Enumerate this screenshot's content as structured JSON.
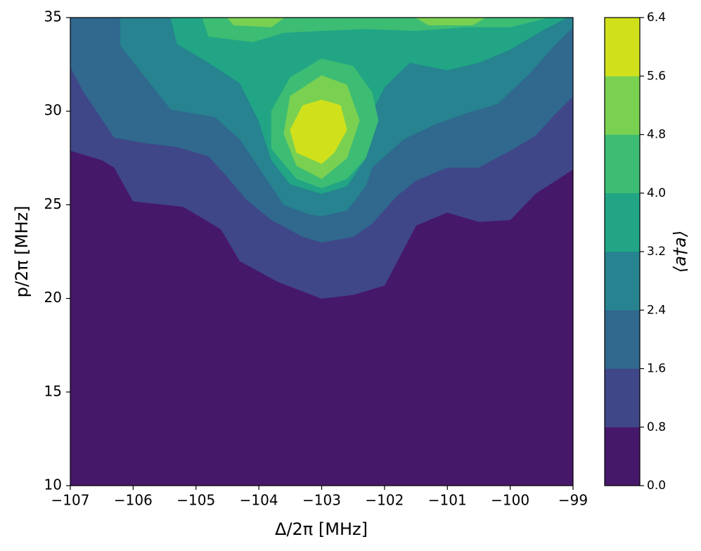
{
  "chart_data": {
    "type": "contourf",
    "xlabel": "Δ/2π [MHz]",
    "ylabel": "p/2π [MHz]",
    "xlim": [
      -107,
      -99
    ],
    "xticks": [
      {
        "value": -107,
        "label": "−107"
      },
      {
        "value": -106,
        "label": "−106"
      },
      {
        "value": -105,
        "label": "−105"
      },
      {
        "value": -104,
        "label": "−104"
      },
      {
        "value": -103,
        "label": "−103"
      },
      {
        "value": -102,
        "label": "−102"
      },
      {
        "value": -101,
        "label": "−101"
      },
      {
        "value": -100,
        "label": "−100"
      },
      {
        "value": -99,
        "label": "−99"
      }
    ],
    "ylim": [
      10,
      35
    ],
    "yticks": [
      10,
      15,
      20,
      25,
      30,
      35
    ],
    "background_color": "#46186a",
    "regions": [
      {
        "color": "#3f4788",
        "x": [
          -107,
          -106.5,
          -106.3,
          -106,
          -105.2,
          -104.6,
          -104.3,
          -103.7,
          -103,
          -102.5,
          -102,
          -101.5,
          -101,
          -100.5,
          -100,
          -99.6,
          -99,
          -99,
          -107
        ],
        "y": [
          27.9,
          27.4,
          27.0,
          25.2,
          24.9,
          23.7,
          22.0,
          20.9,
          20.0,
          20.2,
          20.7,
          23.9,
          24.6,
          24.1,
          24.2,
          25.6,
          26.9,
          35,
          35
        ]
      },
      {
        "color": "#30688e",
        "x": [
          -107,
          -106.8,
          -106.3,
          -105.8,
          -105.3,
          -104.8,
          -104.5,
          -104.2,
          -103.8,
          -103.3,
          -103,
          -102.5,
          -102.2,
          -101.8,
          -101.5,
          -101,
          -100.5,
          -100,
          -99.6,
          -99.3,
          -99,
          -99,
          -107
        ],
        "y": [
          32.4,
          31.1,
          28.6,
          28.3,
          28.1,
          27.6,
          26.5,
          25.3,
          24.2,
          23.3,
          23.0,
          23.3,
          24.0,
          25.5,
          26.3,
          27.0,
          27.0,
          27.9,
          28.7,
          29.8,
          30.8,
          35,
          35
        ]
      },
      {
        "color": "#26838f",
        "x": [
          -106.2,
          -106.2,
          -105.8,
          -105.4,
          -104.7,
          -104.3,
          -103.9,
          -103.6,
          -103.2,
          -103,
          -102.6,
          -102.3,
          -102.2,
          -101.7,
          -101.2,
          -100.7,
          -100.2,
          -99.7,
          -99.3,
          -99,
          -99
        ],
        "y": [
          35,
          33.5,
          31.8,
          30.1,
          29.7,
          28.5,
          26.5,
          25.0,
          24.5,
          24.4,
          24.7,
          26.0,
          27.0,
          28.5,
          29.3,
          29.9,
          30.4,
          32.0,
          33.5,
          34.5,
          35
        ]
      },
      {
        "color": "#21a585",
        "x": [
          -105.4,
          -105.3,
          -104.8,
          -104.3,
          -104,
          -103.8,
          -103.5,
          -103,
          -102.6,
          -102.3,
          -102.3,
          -102,
          -101.6,
          -101,
          -100.5,
          -100,
          -99.5,
          -99.1
        ],
        "y": [
          35,
          33.6,
          32.6,
          31.5,
          29.5,
          27.4,
          26.1,
          25.6,
          26.0,
          27.5,
          29.3,
          31.3,
          32.6,
          32.2,
          32.6,
          33.3,
          34.3,
          35
        ]
      },
      {
        "color": "#3dbc74",
        "x": [
          -104.9,
          -104.8,
          -104.1,
          -103.6,
          -103,
          -102.3,
          -101.5,
          -100.7,
          -100,
          -99.4
        ],
        "y": [
          35,
          34.0,
          33.7,
          34.2,
          34.3,
          34.4,
          34.3,
          34.5,
          34.5,
          35
        ]
      },
      {
        "color": "#3dbc74",
        "x": [
          -103,
          -102.5,
          -102.2,
          -102.1,
          -102.3,
          -102.6,
          -103,
          -103.4,
          -103.8,
          -103.8,
          -103.5
        ],
        "y": [
          32.8,
          32.4,
          31.0,
          29.5,
          27.5,
          26.4,
          25.9,
          26.4,
          28.0,
          30.0,
          31.8
        ]
      },
      {
        "color": "#7ad151",
        "x": [
          -104.5,
          -104.4,
          -103.8,
          -103.6
        ],
        "y": [
          35,
          34.6,
          34.5,
          35
        ]
      },
      {
        "color": "#7ad151",
        "x": [
          -101.5,
          -101.3,
          -100.6,
          -100.4
        ],
        "y": [
          35,
          34.6,
          34.6,
          35
        ]
      },
      {
        "color": "#7ad151",
        "x": [
          -103,
          -102.6,
          -102.4,
          -102.6,
          -103,
          -103.4,
          -103.6,
          -103.5
        ],
        "y": [
          31.9,
          31.4,
          29.5,
          27.5,
          26.4,
          27.1,
          28.8,
          30.8
        ]
      },
      {
        "color": "#d0e11c",
        "x": [
          -103,
          -102.7,
          -102.6,
          -102.8,
          -103,
          -103.4,
          -103.5,
          -103.3
        ],
        "y": [
          30.6,
          30.3,
          29.0,
          27.8,
          27.2,
          27.8,
          29.0,
          30.3
        ]
      }
    ],
    "colorbar": {
      "label": "⟨a†a⟩",
      "lim": [
        0,
        6.4
      ],
      "ticks": [
        {
          "value": 0,
          "label": "0.0"
        },
        0.8,
        1.6,
        2.4,
        3.2,
        {
          "value": 4,
          "label": "4.0"
        },
        4.8,
        5.6,
        6.4
      ],
      "colors": [
        "#46186a",
        "#3f4788",
        "#30688e",
        "#26838f",
        "#21a585",
        "#3dbc74",
        "#7ad151",
        "#d0e11c"
      ]
    }
  }
}
